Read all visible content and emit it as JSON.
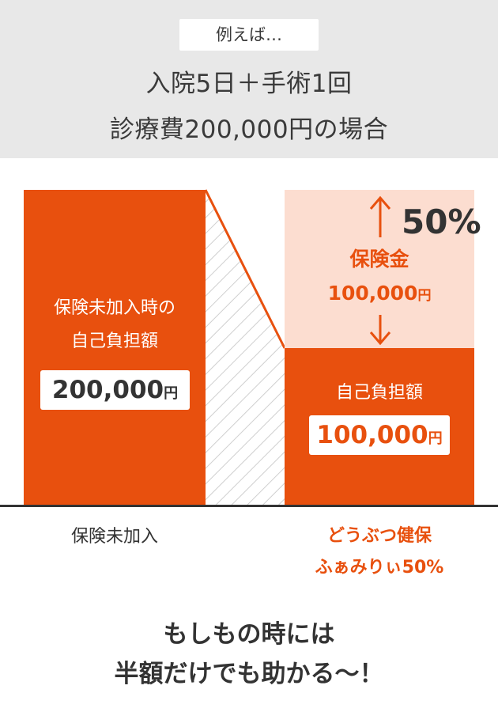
{
  "header": {
    "tag": "例えば…",
    "line1": "入院5日＋手術1回",
    "line2": "診療費200,000円の場合"
  },
  "chart_data": {
    "type": "bar",
    "categories": [
      "保険未加入",
      "どうぶつ健保ふぁみりぃ50%"
    ],
    "series": [
      {
        "name": "自己負担額",
        "values": [
          200000,
          100000
        ]
      },
      {
        "name": "保険金",
        "values": [
          0,
          100000
        ]
      }
    ],
    "ylim": [
      0,
      200000
    ],
    "annotations": {
      "left_label_line1": "保険未加入時の",
      "left_label_line2": "自己負担額",
      "left_amount": "200,000",
      "right_label": "自己負担額",
      "right_amount": "100,000",
      "insurance_title": "保険金",
      "insurance_amount": "100,000",
      "unit": "円",
      "percent": "50%",
      "arrow_up": "↑",
      "arrow_down": "↓"
    },
    "colors": {
      "bar": "#e8500e",
      "insurance": "#fcddd0",
      "hatch": "#cccccc"
    }
  },
  "x_labels": {
    "left": "保険未加入",
    "right_line1": "どうぶつ健保",
    "right_line2": "ふぁみりぃ50%"
  },
  "footer": {
    "line1": "もしもの時には",
    "line2": "半額だけでも助かる〜！"
  }
}
